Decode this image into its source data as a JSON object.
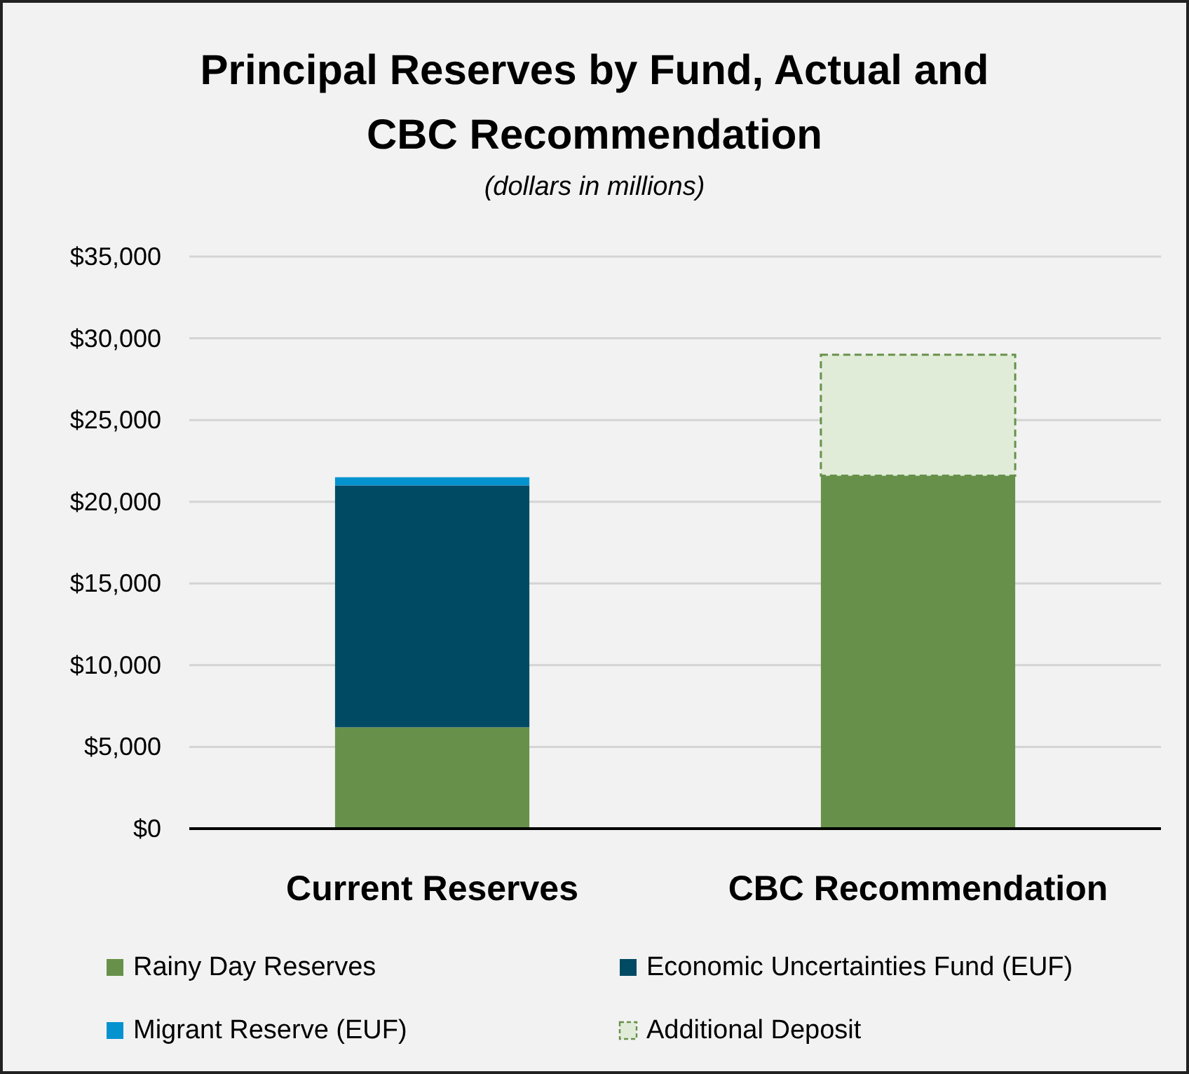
{
  "chart_data": {
    "type": "bar",
    "title": "Principal Reserves by Fund, Actual and CBC Recommendation",
    "subtitle": "(dollars in millions)",
    "categories": [
      "Current Reserves",
      "CBC Recommendation"
    ],
    "stacked": true,
    "series": [
      {
        "name": "Rainy Day Reserves",
        "color": "#67914a",
        "values": [
          6200,
          21600
        ]
      },
      {
        "name": "Economic Uncertainties Fund (EUF)",
        "color": "#014a63",
        "values": [
          14800,
          null
        ]
      },
      {
        "name": "Migrant Reserve (EUF)",
        "color": "#0593d0",
        "values": [
          500,
          null
        ]
      },
      {
        "name": "Additional Deposit",
        "color": "#e0ecd8",
        "values": [
          null,
          7400
        ],
        "line_style": "dashed"
      }
    ],
    "ylim": [
      0,
      35000
    ],
    "yticks": [
      {
        "value": 0,
        "label": "$0"
      },
      {
        "value": 5000,
        "label": "$5,000"
      },
      {
        "value": 10000,
        "label": "$10,000"
      },
      {
        "value": 15000,
        "label": "$15,000"
      },
      {
        "value": 20000,
        "label": "$20,000"
      },
      {
        "value": 25000,
        "label": "$25,000"
      },
      {
        "value": 30000,
        "label": "$30,000"
      },
      {
        "value": 35000,
        "label": "$35,000"
      }
    ],
    "grid": "y",
    "legend": "bottom"
  }
}
